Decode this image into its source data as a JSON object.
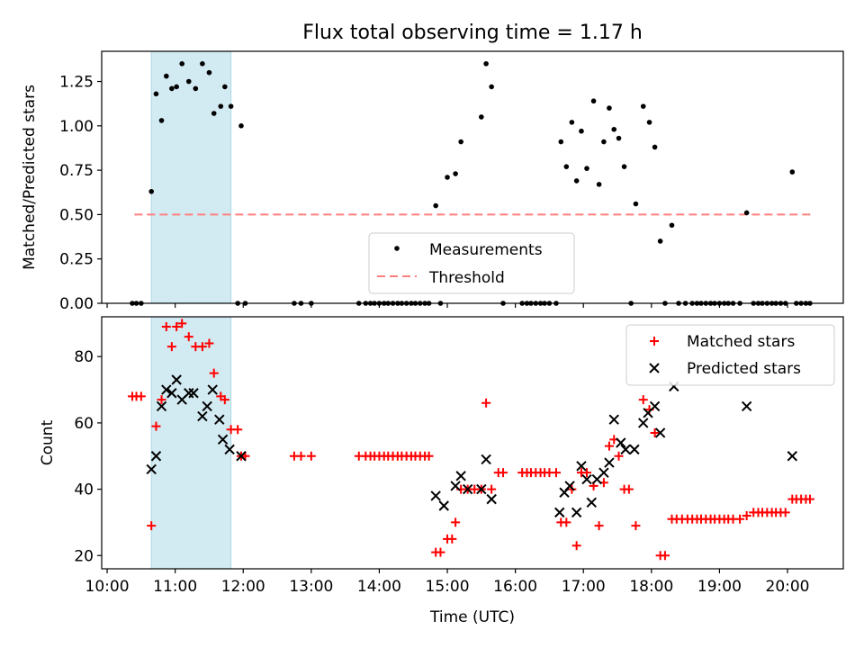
{
  "title": "Flux total observing time = 1.17 h",
  "colors": {
    "measurement": "#000000",
    "threshold": "#ff7f7f",
    "matched": "#ff0000",
    "predicted": "#000000",
    "shade": "#add8e6"
  },
  "chart_data": [
    {
      "type": "scatter",
      "panel": "top",
      "title": "Flux total observing time = 1.17 h",
      "xlabel": "",
      "ylabel": "Matched/Predicted stars",
      "xlim": [
        9.92,
        20.82
      ],
      "ylim": [
        0,
        1.42
      ],
      "yticks": [
        "0.00",
        "0.25",
        "0.50",
        "0.75",
        "1.00",
        "1.25"
      ],
      "ytick_values": [
        0,
        0.25,
        0.5,
        0.75,
        1.0,
        1.25
      ],
      "shaded_span": [
        10.65,
        11.82
      ],
      "legend": {
        "placement": "lower-center",
        "entries": [
          "Measurements",
          "Threshold"
        ]
      },
      "threshold": {
        "name": "Threshold",
        "y": 0.5,
        "x": [
          10.4,
          20.35
        ]
      },
      "series": [
        {
          "name": "Measurements",
          "points": [
            [
              10.37,
              0
            ],
            [
              10.43,
              0
            ],
            [
              10.5,
              0
            ],
            [
              10.65,
              0.63
            ],
            [
              10.72,
              1.18
            ],
            [
              10.8,
              1.03
            ],
            [
              10.87,
              1.28
            ],
            [
              10.95,
              1.21
            ],
            [
              11.02,
              1.22
            ],
            [
              11.1,
              1.35
            ],
            [
              11.2,
              1.25
            ],
            [
              11.3,
              1.21
            ],
            [
              11.4,
              1.35
            ],
            [
              11.5,
              1.3
            ],
            [
              11.57,
              1.07
            ],
            [
              11.67,
              1.11
            ],
            [
              11.73,
              1.22
            ],
            [
              11.82,
              1.11
            ],
            [
              11.92,
              0
            ],
            [
              11.97,
              1.0
            ],
            [
              12.03,
              0
            ],
            [
              12.75,
              0
            ],
            [
              12.85,
              0
            ],
            [
              13.0,
              0
            ],
            [
              13.7,
              0
            ],
            [
              13.8,
              0
            ],
            [
              13.87,
              0
            ],
            [
              13.93,
              0
            ],
            [
              14.0,
              0
            ],
            [
              14.07,
              0
            ],
            [
              14.13,
              0
            ],
            [
              14.2,
              0
            ],
            [
              14.27,
              0
            ],
            [
              14.33,
              0
            ],
            [
              14.4,
              0
            ],
            [
              14.47,
              0
            ],
            [
              14.53,
              0
            ],
            [
              14.6,
              0
            ],
            [
              14.67,
              0
            ],
            [
              14.73,
              0
            ],
            [
              14.83,
              0.55
            ],
            [
              14.9,
              0
            ],
            [
              15.0,
              0.71
            ],
            [
              15.12,
              0.73
            ],
            [
              15.2,
              0.91
            ],
            [
              15.5,
              1.05
            ],
            [
              15.57,
              1.35
            ],
            [
              15.65,
              1.22
            ],
            [
              15.82,
              0
            ],
            [
              16.1,
              0
            ],
            [
              16.17,
              0
            ],
            [
              16.23,
              0
            ],
            [
              16.3,
              0
            ],
            [
              16.37,
              0
            ],
            [
              16.43,
              0
            ],
            [
              16.5,
              0
            ],
            [
              16.6,
              0
            ],
            [
              16.67,
              0.91
            ],
            [
              16.75,
              0.77
            ],
            [
              16.83,
              1.02
            ],
            [
              16.9,
              0.69
            ],
            [
              16.97,
              0.97
            ],
            [
              17.05,
              0.76
            ],
            [
              17.15,
              1.14
            ],
            [
              17.23,
              0.67
            ],
            [
              17.3,
              0.91
            ],
            [
              17.38,
              1.1
            ],
            [
              17.45,
              0.98
            ],
            [
              17.52,
              0.93
            ],
            [
              17.6,
              0.77
            ],
            [
              17.7,
              0
            ],
            [
              17.77,
              0.56
            ],
            [
              17.88,
              1.11
            ],
            [
              17.97,
              1.02
            ],
            [
              18.05,
              0.88
            ],
            [
              18.13,
              0.35
            ],
            [
              18.2,
              0
            ],
            [
              18.3,
              0.44
            ],
            [
              18.4,
              0
            ],
            [
              18.5,
              0
            ],
            [
              18.6,
              0
            ],
            [
              18.67,
              0
            ],
            [
              18.73,
              0
            ],
            [
              18.8,
              0
            ],
            [
              18.87,
              0
            ],
            [
              18.93,
              0
            ],
            [
              19.0,
              0
            ],
            [
              19.07,
              0
            ],
            [
              19.13,
              0
            ],
            [
              19.2,
              0
            ],
            [
              19.3,
              0
            ],
            [
              19.4,
              0.51
            ],
            [
              19.5,
              0
            ],
            [
              19.57,
              0
            ],
            [
              19.63,
              0
            ],
            [
              19.7,
              0
            ],
            [
              19.77,
              0
            ],
            [
              19.83,
              0
            ],
            [
              19.9,
              0
            ],
            [
              19.97,
              0
            ],
            [
              20.07,
              0.74
            ],
            [
              20.13,
              0
            ],
            [
              20.2,
              0
            ],
            [
              20.27,
              0
            ],
            [
              20.33,
              0
            ]
          ]
        }
      ]
    },
    {
      "type": "scatter",
      "panel": "bottom",
      "xlabel": "Time (UTC)",
      "ylabel": "Count",
      "xlim": [
        9.92,
        20.82
      ],
      "ylim": [
        16,
        92
      ],
      "xticks": [
        "10:00",
        "11:00",
        "12:00",
        "13:00",
        "14:00",
        "15:00",
        "16:00",
        "17:00",
        "18:00",
        "19:00",
        "20:00"
      ],
      "xtick_values": [
        10,
        11,
        12,
        13,
        14,
        15,
        16,
        17,
        18,
        19,
        20
      ],
      "yticks": [
        "20",
        "40",
        "60",
        "80"
      ],
      "ytick_values": [
        20,
        40,
        60,
        80
      ],
      "shaded_span": [
        10.65,
        11.82
      ],
      "legend": {
        "placement": "top-right",
        "entries": [
          "Matched stars",
          "Predicted stars"
        ]
      },
      "series": [
        {
          "name": "Matched stars",
          "marker": "plus",
          "points": [
            [
              10.37,
              68
            ],
            [
              10.43,
              68
            ],
            [
              10.5,
              68
            ],
            [
              10.65,
              29
            ],
            [
              10.72,
              59
            ],
            [
              10.8,
              67
            ],
            [
              10.87,
              89
            ],
            [
              10.95,
              83
            ],
            [
              11.02,
              89
            ],
            [
              11.1,
              90
            ],
            [
              11.2,
              86
            ],
            [
              11.3,
              83
            ],
            [
              11.4,
              83
            ],
            [
              11.5,
              84
            ],
            [
              11.57,
              75
            ],
            [
              11.67,
              68
            ],
            [
              11.73,
              67
            ],
            [
              11.82,
              58
            ],
            [
              11.92,
              58
            ],
            [
              11.97,
              50
            ],
            [
              12.03,
              50
            ],
            [
              12.75,
              50
            ],
            [
              12.85,
              50
            ],
            [
              13.0,
              50
            ],
            [
              13.7,
              50
            ],
            [
              13.8,
              50
            ],
            [
              13.87,
              50
            ],
            [
              13.93,
              50
            ],
            [
              14.0,
              50
            ],
            [
              14.07,
              50
            ],
            [
              14.13,
              50
            ],
            [
              14.2,
              50
            ],
            [
              14.27,
              50
            ],
            [
              14.33,
              50
            ],
            [
              14.4,
              50
            ],
            [
              14.47,
              50
            ],
            [
              14.53,
              50
            ],
            [
              14.6,
              50
            ],
            [
              14.67,
              50
            ],
            [
              14.73,
              50
            ],
            [
              14.83,
              21
            ],
            [
              14.9,
              21
            ],
            [
              15.0,
              25
            ],
            [
              15.07,
              25
            ],
            [
              15.12,
              30
            ],
            [
              15.2,
              40
            ],
            [
              15.3,
              40
            ],
            [
              15.4,
              40
            ],
            [
              15.5,
              40
            ],
            [
              15.57,
              66
            ],
            [
              15.65,
              40
            ],
            [
              15.75,
              45
            ],
            [
              15.82,
              45
            ],
            [
              16.1,
              45
            ],
            [
              16.17,
              45
            ],
            [
              16.23,
              45
            ],
            [
              16.3,
              45
            ],
            [
              16.37,
              45
            ],
            [
              16.43,
              45
            ],
            [
              16.5,
              45
            ],
            [
              16.6,
              45
            ],
            [
              16.67,
              30
            ],
            [
              16.75,
              30
            ],
            [
              16.83,
              40
            ],
            [
              16.9,
              23
            ],
            [
              16.97,
              45
            ],
            [
              17.05,
              45
            ],
            [
              17.15,
              41
            ],
            [
              17.23,
              29
            ],
            [
              17.3,
              42
            ],
            [
              17.38,
              53
            ],
            [
              17.45,
              55
            ],
            [
              17.52,
              50
            ],
            [
              17.6,
              40
            ],
            [
              17.67,
              40
            ],
            [
              17.77,
              29
            ],
            [
              17.88,
              67
            ],
            [
              17.97,
              64
            ],
            [
              18.05,
              57
            ],
            [
              18.13,
              20
            ],
            [
              18.2,
              20
            ],
            [
              18.3,
              31
            ],
            [
              18.37,
              31
            ],
            [
              18.45,
              31
            ],
            [
              18.53,
              31
            ],
            [
              18.6,
              31
            ],
            [
              18.67,
              31
            ],
            [
              18.73,
              31
            ],
            [
              18.8,
              31
            ],
            [
              18.87,
              31
            ],
            [
              18.93,
              31
            ],
            [
              19.0,
              31
            ],
            [
              19.07,
              31
            ],
            [
              19.13,
              31
            ],
            [
              19.2,
              31
            ],
            [
              19.3,
              31
            ],
            [
              19.4,
              32
            ],
            [
              19.5,
              33
            ],
            [
              19.57,
              33
            ],
            [
              19.63,
              33
            ],
            [
              19.7,
              33
            ],
            [
              19.77,
              33
            ],
            [
              19.83,
              33
            ],
            [
              19.9,
              33
            ],
            [
              19.97,
              33
            ],
            [
              20.07,
              37
            ],
            [
              20.13,
              37
            ],
            [
              20.2,
              37
            ],
            [
              20.27,
              37
            ],
            [
              20.33,
              37
            ]
          ]
        },
        {
          "name": "Predicted stars",
          "marker": "x",
          "points": [
            [
              10.65,
              46
            ],
            [
              10.72,
              50
            ],
            [
              10.8,
              65
            ],
            [
              10.87,
              70
            ],
            [
              10.95,
              69
            ],
            [
              11.02,
              73
            ],
            [
              11.1,
              67
            ],
            [
              11.2,
              69
            ],
            [
              11.27,
              69
            ],
            [
              11.4,
              62
            ],
            [
              11.47,
              65
            ],
            [
              11.55,
              70
            ],
            [
              11.65,
              61
            ],
            [
              11.7,
              55
            ],
            [
              11.8,
              52
            ],
            [
              11.97,
              50
            ],
            [
              14.83,
              38
            ],
            [
              14.95,
              35
            ],
            [
              15.12,
              41
            ],
            [
              15.2,
              44
            ],
            [
              15.3,
              40
            ],
            [
              15.5,
              40
            ],
            [
              15.57,
              49
            ],
            [
              15.65,
              37
            ],
            [
              16.65,
              33
            ],
            [
              16.72,
              39
            ],
            [
              16.8,
              41
            ],
            [
              16.9,
              33
            ],
            [
              16.97,
              47
            ],
            [
              17.05,
              43
            ],
            [
              17.12,
              36
            ],
            [
              17.2,
              43
            ],
            [
              17.3,
              45
            ],
            [
              17.38,
              48
            ],
            [
              17.45,
              61
            ],
            [
              17.55,
              54
            ],
            [
              17.62,
              52
            ],
            [
              17.75,
              52
            ],
            [
              17.88,
              60
            ],
            [
              17.95,
              63
            ],
            [
              18.05,
              65
            ],
            [
              18.13,
              57
            ],
            [
              18.33,
              71
            ],
            [
              19.4,
              65
            ],
            [
              20.07,
              50
            ]
          ]
        }
      ]
    }
  ]
}
